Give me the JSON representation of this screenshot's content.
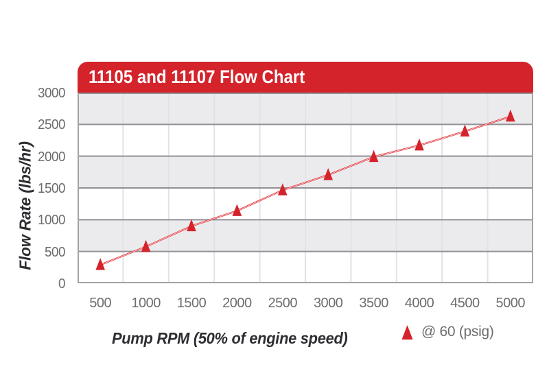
{
  "colors": {
    "accent_red": "#d4232b",
    "line_red": "#e23238",
    "band_gray": "#ebebee",
    "h_gridline": "#919196",
    "v_gridline": "#e2e2e6",
    "frame": "#a3a3a6",
    "tick_label": "#6d6d70",
    "axis_title": "#2e2e32",
    "legend_text": "#6d6d70"
  },
  "chart_data": {
    "type": "line",
    "title": "11105 and 11107 Flow Chart",
    "xlabel": "Pump RPM (50% of engine speed)",
    "ylabel": "Flow Rate (lbs/hr)",
    "categories": [
      500,
      1000,
      1500,
      2000,
      2500,
      3000,
      3500,
      4000,
      4500,
      5000
    ],
    "series": [
      {
        "name": "@ 60 (psig)",
        "marker": "triangle",
        "color": "#d4232b",
        "values": [
          290,
          575,
          900,
          1140,
          1465,
          1705,
          1990,
          2170,
          2390,
          2625
        ]
      }
    ],
    "ylim": [
      0,
      3000
    ],
    "yticks": [
      0,
      500,
      1000,
      1500,
      2000,
      2500,
      3000
    ],
    "grid": "horizontal-bands-with-vertical-column-lines",
    "background_bands": true,
    "legend_position": "bottom-right"
  }
}
